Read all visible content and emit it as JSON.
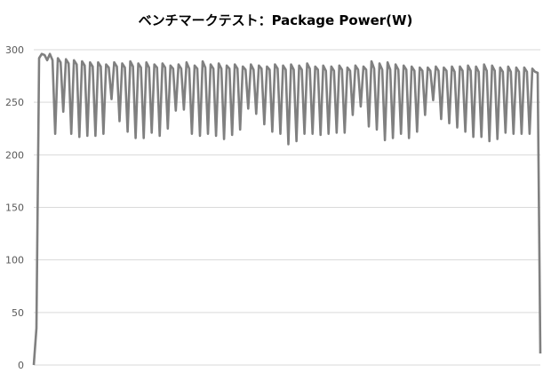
{
  "chart_data": {
    "type": "line",
    "title": "ベンチマークテスト：Package Power(W)",
    "xlabel": "",
    "ylabel": "",
    "ylim": [
      0,
      300
    ],
    "yticks": [
      0,
      50,
      100,
      150,
      200,
      250,
      300
    ],
    "grid": true,
    "x_tick_labels": false,
    "legend": "none",
    "line_color": "#808080",
    "grid_color": "#d9d9d9",
    "series": [
      {
        "values": [
          0,
          35,
          292,
          296,
          295,
          290,
          296,
          290,
          220,
          292,
          288,
          241,
          291,
          287,
          220,
          290,
          286,
          217,
          289,
          285,
          218,
          288,
          284,
          218,
          288,
          284,
          220,
          286,
          283,
          253,
          288,
          284,
          232,
          287,
          283,
          222,
          289,
          284,
          216,
          287,
          283,
          216,
          288,
          283,
          221,
          286,
          283,
          218,
          287,
          283,
          225,
          285,
          282,
          242,
          286,
          282,
          243,
          288,
          282,
          220,
          285,
          282,
          218,
          289,
          283,
          220,
          286,
          282,
          218,
          287,
          282,
          215,
          285,
          282,
          219,
          286,
          282,
          224,
          284,
          281,
          244,
          286,
          281,
          239,
          285,
          282,
          229,
          284,
          281,
          222,
          286,
          282,
          220,
          285,
          281,
          210,
          286,
          281,
          213,
          285,
          281,
          220,
          287,
          282,
          220,
          284,
          281,
          219,
          285,
          280,
          220,
          284,
          280,
          221,
          285,
          281,
          221,
          283,
          280,
          238,
          285,
          281,
          246,
          284,
          281,
          227,
          289,
          282,
          224,
          287,
          281,
          214,
          288,
          281,
          216,
          286,
          281,
          220,
          285,
          281,
          216,
          284,
          280,
          222,
          283,
          280,
          238,
          283,
          280,
          252,
          284,
          280,
          234,
          283,
          280,
          230,
          284,
          279,
          226,
          284,
          280,
          222,
          285,
          280,
          217,
          284,
          279,
          217,
          286,
          280,
          213,
          285,
          280,
          215,
          283,
          279,
          221,
          284,
          279,
          220,
          283,
          279,
          220,
          283,
          279,
          220,
          282,
          279,
          278,
          11
        ]
      }
    ]
  }
}
